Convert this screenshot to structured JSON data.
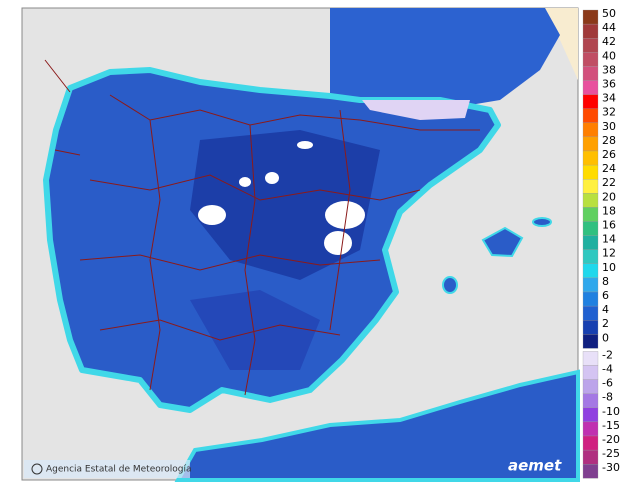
{
  "legend": {
    "items": [
      {
        "label": "50",
        "color": "#8b3a1a"
      },
      {
        "label": "44",
        "color": "#a03a3a"
      },
      {
        "label": "42",
        "color": "#b04650"
      },
      {
        "label": "40",
        "color": "#c04e64"
      },
      {
        "label": "38",
        "color": "#d2507c"
      },
      {
        "label": "36",
        "color": "#e8509e"
      },
      {
        "label": "34",
        "color": "#ff0000"
      },
      {
        "label": "32",
        "color": "#ff4a00"
      },
      {
        "label": "30",
        "color": "#ff7f00"
      },
      {
        "label": "28",
        "color": "#ffa000"
      },
      {
        "label": "26",
        "color": "#ffbf00"
      },
      {
        "label": "24",
        "color": "#ffdc00"
      },
      {
        "label": "22",
        "color": "#fff040"
      },
      {
        "label": "20",
        "color": "#b8e040"
      },
      {
        "label": "18",
        "color": "#60d060"
      },
      {
        "label": "16",
        "color": "#30c080"
      },
      {
        "label": "14",
        "color": "#20b0a0"
      },
      {
        "label": "12",
        "color": "#30c8c0"
      },
      {
        "label": "10",
        "color": "#20d8ec"
      },
      {
        "label": "8",
        "color": "#30a8ec"
      },
      {
        "label": "6",
        "color": "#2080e0"
      },
      {
        "label": "4",
        "color": "#2060d0"
      },
      {
        "label": "2",
        "color": "#1840b0"
      },
      {
        "label": "0",
        "color": "#102080"
      },
      {
        "label": "-2",
        "color": "#e8e0f8"
      },
      {
        "label": "-4",
        "color": "#d4c4f2"
      },
      {
        "label": "-6",
        "color": "#bca4ea"
      },
      {
        "label": "-8",
        "color": "#a478e4"
      },
      {
        "label": "-10",
        "color": "#9040e0"
      },
      {
        "label": "-15",
        "color": "#c030b0"
      },
      {
        "label": "-20",
        "color": "#d02080"
      },
      {
        "label": "-25",
        "color": "#b03080"
      },
      {
        "label": "-30",
        "color": "#804090"
      }
    ]
  },
  "footer": {
    "credit": "Agencia Estatal de Meteorología",
    "logo": "aemet"
  }
}
